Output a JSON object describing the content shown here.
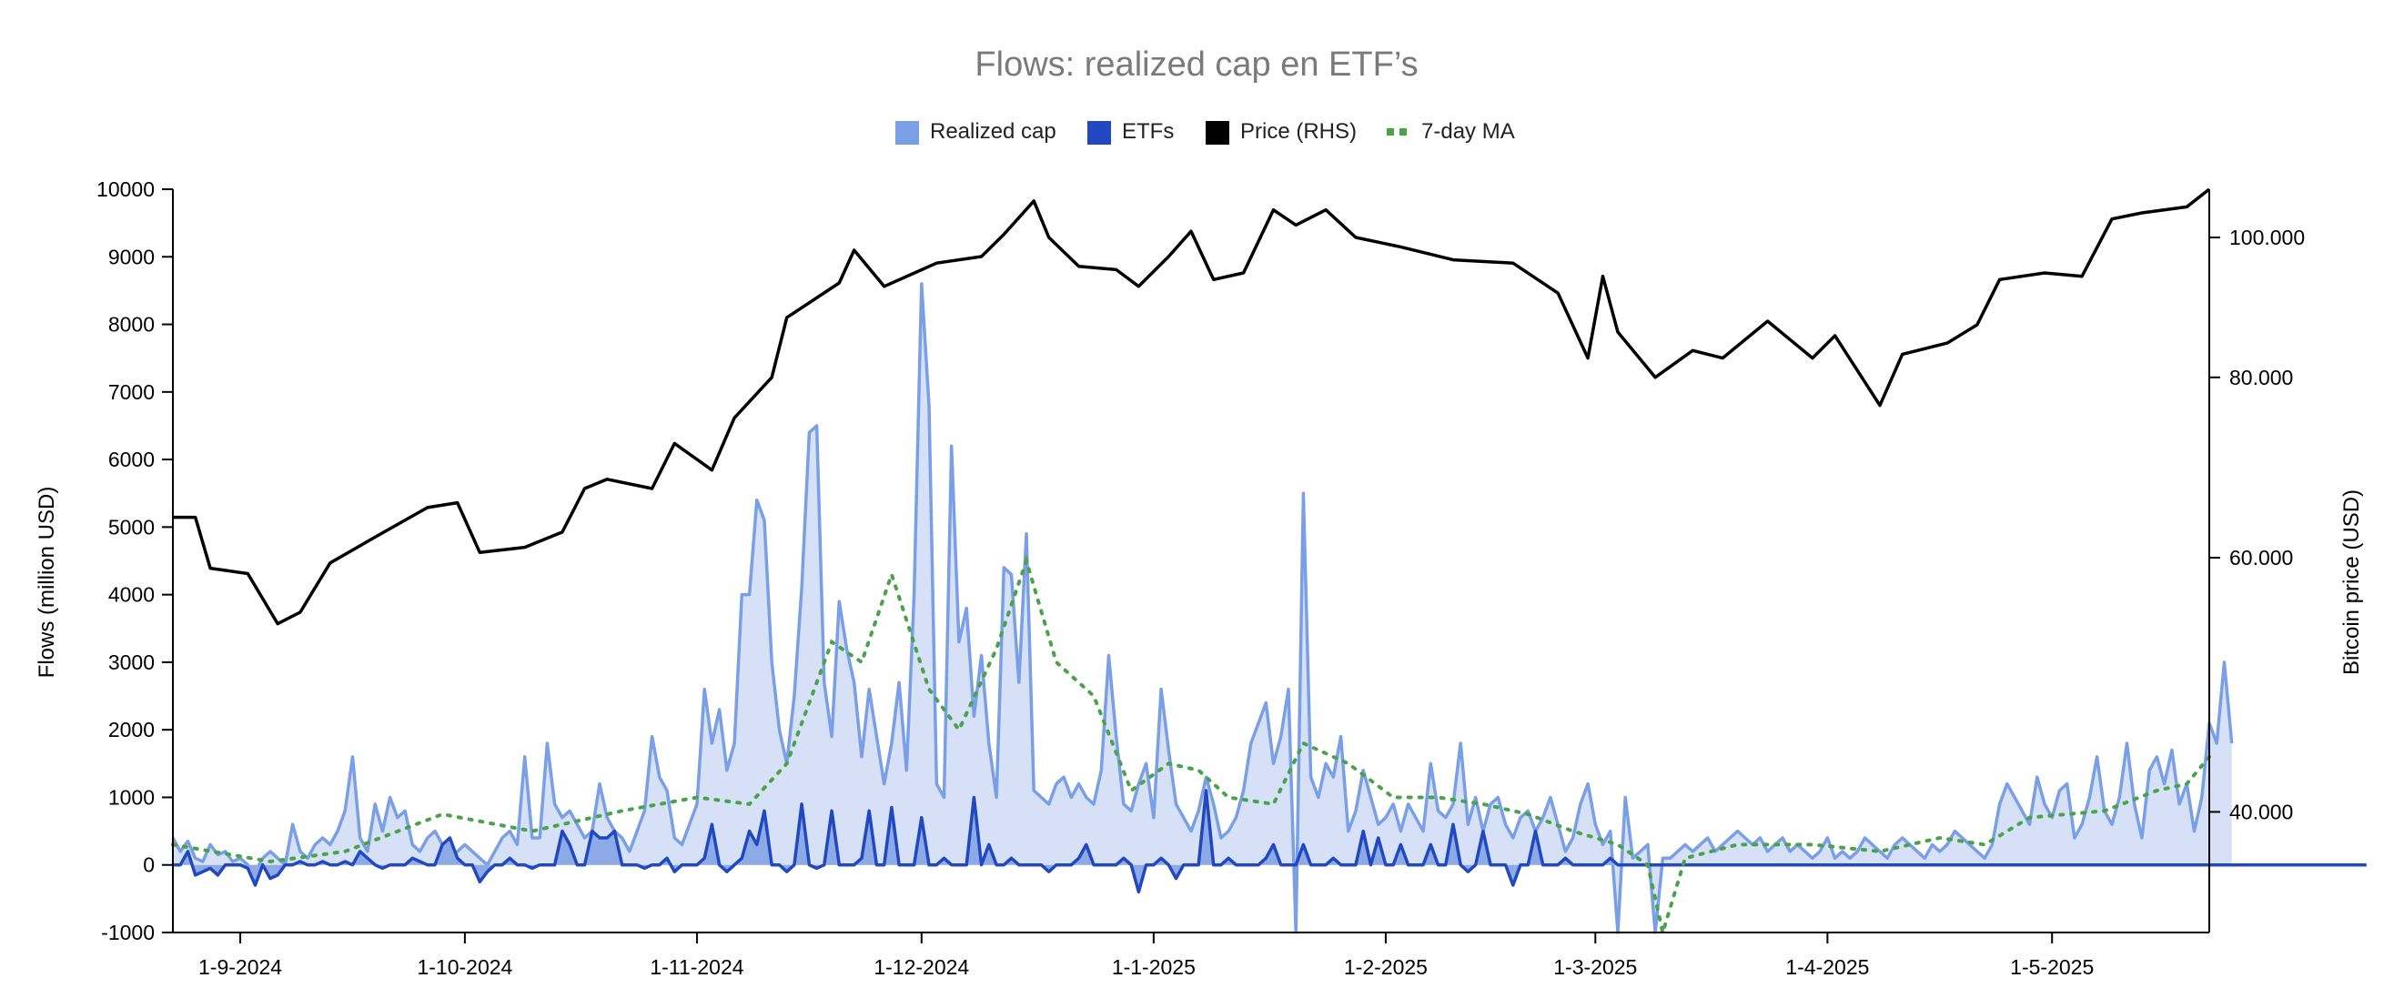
{
  "chart_data": {
    "type": "area",
    "title": "Flows: realized cap en ETF’s",
    "ylabel": "Flows (million USD)",
    "y2label": "Bitcoin price (USD)",
    "ylim": [
      -1000,
      10000
    ],
    "y2lim": [
      33000,
      108000
    ],
    "y2scale": "log",
    "legend_position": "top-center",
    "grid": false,
    "x_ticks": [
      "1-9-2024",
      "1-10-2024",
      "1-11-2024",
      "1-12-2024",
      "1-1-2025",
      "1-2-2025",
      "1-3-2025",
      "1-4-2025",
      "1-5-2025"
    ],
    "y_ticks": [
      "-1000",
      "0",
      "1000",
      "2000",
      "3000",
      "4000",
      "5000",
      "6000",
      "7000",
      "8000",
      "9000",
      "10000"
    ],
    "y2_ticks": [
      {
        "value": 40000,
        "label": "40.000"
      },
      {
        "value": 60000,
        "label": "60.000"
      },
      {
        "value": 80000,
        "label": "80.000"
      },
      {
        "value": 100000,
        "label": "100.000"
      }
    ],
    "colors": {
      "realized_cap_line": "#7a9fe6",
      "realized_cap_fill": "#d6e1f7",
      "etf_line": "#2148c0",
      "etf_fill": "#8eaae6",
      "price": "#000000",
      "ma": "#4aa34a",
      "title": "#7a7a7a"
    },
    "series": [
      {
        "name": "Realized cap",
        "color": "#7a9fe6",
        "start_date": "2024-08-23",
        "values": [
          400,
          200,
          350,
          100,
          50,
          300,
          150,
          200,
          50,
          100,
          0,
          -100,
          100,
          200,
          100,
          0,
          600,
          200,
          100,
          300,
          400,
          300,
          500,
          800,
          1600,
          400,
          200,
          900,
          500,
          1000,
          700,
          800,
          300,
          200,
          400,
          500,
          300,
          100,
          200,
          300,
          200,
          100,
          0,
          200,
          400,
          500,
          300,
          1600,
          400,
          400,
          1800,
          900,
          700,
          800,
          600,
          400,
          500,
          1200,
          700,
          500,
          400,
          200,
          500,
          800,
          1900,
          1300,
          1100,
          400,
          300,
          600,
          900,
          2600,
          1800,
          2300,
          1400,
          1800,
          4000,
          4000,
          5400,
          5100,
          3000,
          2000,
          1500,
          2500,
          4100,
          6400,
          6500,
          2700,
          1900,
          3900,
          3200,
          2700,
          1600,
          2600,
          1900,
          1200,
          1800,
          2700,
          1400,
          4000,
          8600,
          6800,
          1200,
          1000,
          6200,
          3300,
          3800,
          2200,
          3100,
          1800,
          1000,
          4400,
          4300,
          2700,
          4900,
          1100,
          1000,
          900,
          1200,
          1300,
          1000,
          1200,
          1000,
          900,
          1400,
          3100,
          1900,
          900,
          800,
          1200,
          1500,
          700,
          2600,
          1700,
          900,
          700,
          500,
          800,
          1300,
          900,
          400,
          500,
          700,
          1100,
          1800,
          2100,
          2400,
          1500,
          1900,
          2600,
          -1000,
          5500,
          1300,
          1000,
          1500,
          1300,
          1900,
          500,
          800,
          1400,
          1000,
          600,
          700,
          900,
          500,
          900,
          700,
          500,
          1500,
          800,
          700,
          900,
          1800,
          600,
          1000,
          500,
          900,
          1000,
          600,
          400,
          700,
          800,
          500,
          700,
          1000,
          600,
          200,
          400,
          900,
          1200,
          600,
          300,
          500,
          -1000,
          1000,
          100,
          200,
          300,
          -1000,
          100,
          100,
          200,
          300,
          200,
          300,
          400,
          200,
          300,
          400,
          500,
          400,
          300,
          400,
          200,
          300,
          400,
          200,
          300,
          200,
          100,
          200,
          400,
          100,
          200,
          100,
          200,
          400,
          300,
          200,
          100,
          300,
          400,
          300,
          200,
          100,
          300,
          200,
          300,
          500,
          400,
          300,
          200,
          100,
          300,
          900,
          1200,
          1000,
          800,
          600,
          1300,
          900,
          700,
          1100,
          1200,
          400,
          600,
          1000,
          1600,
          800,
          600,
          1000,
          1800,
          900,
          400,
          1400,
          1600,
          1200,
          1700,
          900,
          1200,
          500,
          1000,
          2100,
          1800,
          3000,
          1800
        ]
      },
      {
        "name": "ETFs",
        "color": "#2148c0",
        "start_date": "2024-08-23",
        "values": [
          0,
          0,
          200,
          -150,
          -100,
          -50,
          -150,
          0,
          0,
          0,
          -50,
          -300,
          0,
          -200,
          -150,
          0,
          0,
          50,
          0,
          0,
          50,
          0,
          0,
          50,
          0,
          200,
          100,
          0,
          -50,
          0,
          0,
          0,
          100,
          50,
          0,
          0,
          300,
          400,
          100,
          0,
          0,
          -250,
          -100,
          0,
          0,
          100,
          0,
          0,
          -50,
          0,
          0,
          0,
          500,
          300,
          0,
          0,
          500,
          400,
          400,
          500,
          0,
          0,
          0,
          -50,
          0,
          0,
          100,
          -100,
          0,
          0,
          0,
          100,
          600,
          0,
          -100,
          0,
          100,
          500,
          300,
          800,
          0,
          0,
          -100,
          0,
          900,
          0,
          -50,
          0,
          800,
          0,
          0,
          0,
          100,
          800,
          0,
          0,
          850,
          0,
          0,
          0,
          700,
          0,
          0,
          100,
          0,
          0,
          0,
          1000,
          0,
          300,
          0,
          0,
          100,
          0,
          0,
          0,
          0,
          -100,
          0,
          0,
          0,
          100,
          300,
          0,
          0,
          0,
          0,
          100,
          0,
          -400,
          0,
          0,
          100,
          0,
          -200,
          0,
          0,
          0,
          1100,
          0,
          0,
          100,
          0,
          0,
          0,
          0,
          100,
          300,
          0,
          0,
          0,
          300,
          0,
          0,
          0,
          100,
          0,
          0,
          0,
          500,
          0,
          400,
          0,
          0,
          300,
          0,
          0,
          0,
          300,
          0,
          0,
          600,
          0,
          -100,
          0,
          500,
          0,
          0,
          0,
          -300,
          0,
          0,
          500,
          0,
          0,
          0,
          100,
          0,
          0,
          0,
          0,
          0,
          100,
          0,
          0,
          0,
          0,
          0,
          0,
          0,
          0,
          0,
          0,
          0,
          0,
          0,
          0,
          0,
          0,
          0,
          0,
          0,
          0,
          0,
          0,
          0,
          0,
          0,
          0,
          0,
          0,
          0,
          0,
          0,
          0,
          0,
          0,
          0,
          0,
          0,
          0,
          0,
          0,
          0,
          0,
          0,
          0,
          0,
          0,
          0,
          0,
          0,
          0,
          0,
          0,
          0,
          0,
          0,
          0,
          0,
          0,
          0,
          0,
          0,
          0,
          0,
          0,
          0,
          0,
          0,
          0,
          0,
          0,
          0,
          0,
          0,
          0,
          0,
          0,
          0,
          0,
          0,
          0,
          0,
          0,
          0,
          0,
          0,
          0,
          0,
          0,
          0,
          0,
          0,
          0,
          0,
          0,
          0,
          0,
          0,
          0,
          0,
          0,
          0
        ]
      },
      {
        "name": "Price (RHS)",
        "color": "#000000",
        "axis": "right",
        "keypoints": [
          [
            "2024-08-23",
            64000
          ],
          [
            "2024-08-26",
            64000
          ],
          [
            "2024-08-28",
            59000
          ],
          [
            "2024-09-02",
            58500
          ],
          [
            "2024-09-06",
            54000
          ],
          [
            "2024-09-09",
            55000
          ],
          [
            "2024-09-13",
            59500
          ],
          [
            "2024-09-19",
            62000
          ],
          [
            "2024-09-26",
            65000
          ],
          [
            "2024-09-30",
            65500
          ],
          [
            "2024-10-03",
            60500
          ],
          [
            "2024-10-09",
            61000
          ],
          [
            "2024-10-14",
            62500
          ],
          [
            "2024-10-17",
            67000
          ],
          [
            "2024-10-20",
            68000
          ],
          [
            "2024-10-26",
            67000
          ],
          [
            "2024-10-29",
            72000
          ],
          [
            "2024-11-03",
            69000
          ],
          [
            "2024-11-06",
            75000
          ],
          [
            "2024-11-11",
            80000
          ],
          [
            "2024-11-13",
            88000
          ],
          [
            "2024-11-20",
            93000
          ],
          [
            "2024-11-22",
            98000
          ],
          [
            "2024-11-26",
            92500
          ],
          [
            "2024-12-03",
            96000
          ],
          [
            "2024-12-09",
            97000
          ],
          [
            "2024-12-12",
            100500
          ],
          [
            "2024-12-16",
            106000
          ],
          [
            "2024-12-18",
            100000
          ],
          [
            "2024-12-22",
            95500
          ],
          [
            "2024-12-27",
            95000
          ],
          [
            "2024-12-30",
            92500
          ],
          [
            "2025-01-03",
            97000
          ],
          [
            "2025-01-06",
            101000
          ],
          [
            "2025-01-09",
            93500
          ],
          [
            "2025-01-13",
            94500
          ],
          [
            "2025-01-17",
            104500
          ],
          [
            "2025-01-20",
            102000
          ],
          [
            "2025-01-24",
            104500
          ],
          [
            "2025-01-28",
            100000
          ],
          [
            "2025-02-03",
            98500
          ],
          [
            "2025-02-10",
            96500
          ],
          [
            "2025-02-18",
            96000
          ],
          [
            "2025-02-24",
            91500
          ],
          [
            "2025-02-28",
            82500
          ],
          [
            "2025-03-02",
            94000
          ],
          [
            "2025-03-04",
            86000
          ],
          [
            "2025-03-09",
            80000
          ],
          [
            "2025-03-14",
            83500
          ],
          [
            "2025-03-18",
            82500
          ],
          [
            "2025-03-24",
            87500
          ],
          [
            "2025-03-30",
            82500
          ],
          [
            "2025-04-02",
            85500
          ],
          [
            "2025-04-08",
            76500
          ],
          [
            "2025-04-11",
            83000
          ],
          [
            "2025-04-17",
            84500
          ],
          [
            "2025-04-21",
            87000
          ],
          [
            "2025-04-24",
            93500
          ],
          [
            "2025-04-30",
            94500
          ],
          [
            "2025-05-05",
            94000
          ],
          [
            "2025-05-09",
            103000
          ],
          [
            "2025-05-13",
            104000
          ],
          [
            "2025-05-19",
            105000
          ],
          [
            "2025-05-22",
            110000
          ]
        ]
      },
      {
        "name": "7-day MA",
        "color": "#4aa34a",
        "style": "dotted",
        "keypoints": [
          [
            "2024-08-23",
            300
          ],
          [
            "2024-09-05",
            50
          ],
          [
            "2024-09-15",
            200
          ],
          [
            "2024-09-28",
            750
          ],
          [
            "2024-10-10",
            500
          ],
          [
            "2024-10-22",
            800
          ],
          [
            "2024-11-01",
            1000
          ],
          [
            "2024-11-08",
            900
          ],
          [
            "2024-11-13",
            1500
          ],
          [
            "2024-11-19",
            3300
          ],
          [
            "2024-11-23",
            3000
          ],
          [
            "2024-11-27",
            4300
          ],
          [
            "2024-12-02",
            2600
          ],
          [
            "2024-12-06",
            2000
          ],
          [
            "2024-12-11",
            3200
          ],
          [
            "2024-12-15",
            4500
          ],
          [
            "2024-12-19",
            3000
          ],
          [
            "2024-12-24",
            2500
          ],
          [
            "2024-12-29",
            1100
          ],
          [
            "2025-01-03",
            1500
          ],
          [
            "2025-01-07",
            1400
          ],
          [
            "2025-01-11",
            1000
          ],
          [
            "2025-01-17",
            900
          ],
          [
            "2025-01-21",
            1800
          ],
          [
            "2025-01-27",
            1500
          ],
          [
            "2025-02-02",
            1000
          ],
          [
            "2025-02-08",
            1000
          ],
          [
            "2025-02-14",
            900
          ],
          [
            "2025-02-20",
            750
          ],
          [
            "2025-02-26",
            500
          ],
          [
            "2025-03-04",
            300
          ],
          [
            "2025-03-08",
            0
          ],
          [
            "2025-03-10",
            -1000
          ],
          [
            "2025-03-13",
            100
          ],
          [
            "2025-03-20",
            300
          ],
          [
            "2025-03-30",
            300
          ],
          [
            "2025-04-08",
            200
          ],
          [
            "2025-04-16",
            400
          ],
          [
            "2025-04-22",
            300
          ],
          [
            "2025-04-28",
            700
          ],
          [
            "2025-05-08",
            800
          ],
          [
            "2025-05-15",
            1100
          ],
          [
            "2025-05-19",
            1200
          ],
          [
            "2025-05-22",
            1600
          ]
        ]
      }
    ]
  }
}
